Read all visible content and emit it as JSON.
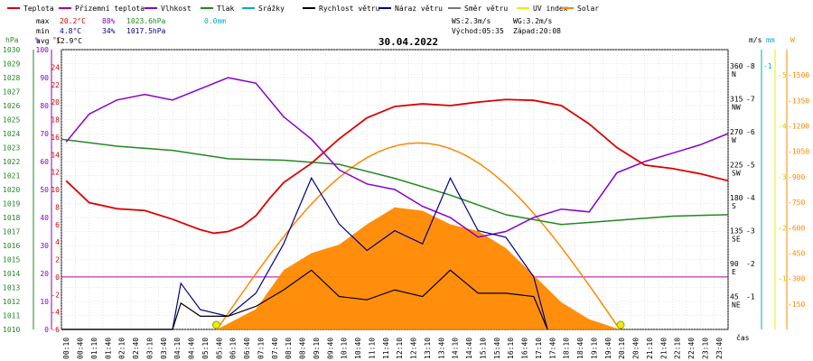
{
  "legend": [
    {
      "label": "Teplota",
      "color": "#dd0000"
    },
    {
      "label": "Přízemní teplota",
      "color": "#aa00aa"
    },
    {
      "label": "Vlhkost",
      "color": "#8800cc"
    },
    {
      "label": "Tlak",
      "color": "#228822"
    },
    {
      "label": "Srážky",
      "color": "#00aacc"
    },
    {
      "label": "Rychlost větru",
      "color": "#000000"
    },
    {
      "label": "Náraz větru",
      "color": "#000088"
    },
    {
      "label": "Směr větru",
      "color": "#777777"
    },
    {
      "label": "UV index",
      "color": "#eeee00"
    },
    {
      "label": "Solar",
      "color": "#ff8800"
    }
  ],
  "stats": {
    "max_label": "max",
    "max_temp": "20.2°C",
    "max_hum": "88%",
    "max_press": "1023.6hPa",
    "rain": "0.0mm",
    "min_label": "min",
    "min_temp": "4.8°C",
    "min_hum": "34%",
    "min_press": "1017.5hPa",
    "avg_label": "avg",
    "avg_temp": "12.9°C"
  },
  "wind_info": {
    "ws": "WS:2.3m/s",
    "wg": "WG:3.2m/s",
    "sunrise": "Východ:05:35",
    "sunset": "Západ:20:08"
  },
  "date": "30.04.2022",
  "axis_units": {
    "hpa": "hPa",
    "pct": "%",
    "degc": "°C",
    "ms": "m/s",
    "mm": "mm",
    "w": "W",
    "cas": "čas"
  },
  "axes": {
    "pressure": [
      "1010",
      "1011",
      "1012",
      "1013",
      "1014",
      "1015",
      "1016",
      "1017",
      "1018",
      "1019",
      "1020",
      "1021",
      "1022",
      "1023",
      "1024",
      "1025",
      "1026",
      "1027",
      "1028",
      "1029",
      "1030"
    ],
    "humidity": [
      "0",
      "10",
      "20",
      "30",
      "40",
      "50",
      "60",
      "70",
      "80",
      "90",
      "100"
    ],
    "temp": [
      "-6",
      "-4",
      "-2",
      "0",
      "2",
      "4",
      "6",
      "8",
      "10",
      "12",
      "14",
      "16",
      "18",
      "20",
      "22",
      "24"
    ],
    "wind_dir": [
      "360 N",
      "315 NW",
      "270 W",
      "225 SW",
      "180 S",
      "135 SE",
      "90 E",
      "45 NE"
    ],
    "wind_speed": [
      "1",
      "2",
      "3",
      "4",
      "5",
      "6",
      "7",
      "8"
    ],
    "rain": [
      "1"
    ],
    "uv": [
      "1",
      "2",
      "3",
      "4",
      "5"
    ],
    "solar": [
      "150",
      "300",
      "450",
      "600",
      "750",
      "900",
      "1050",
      "1200",
      "1350",
      "1500"
    ],
    "time": [
      "00:10",
      "00:40",
      "01:10",
      "01:40",
      "02:10",
      "02:40",
      "03:10",
      "03:40",
      "04:10",
      "04:40",
      "05:10",
      "05:40",
      "06:10",
      "06:40",
      "07:10",
      "07:40",
      "08:10",
      "08:40",
      "09:10",
      "09:40",
      "10:10",
      "10:40",
      "11:10",
      "11:40",
      "12:10",
      "12:40",
      "13:10",
      "13:40",
      "14:10",
      "14:40",
      "15:10",
      "15:40",
      "16:10",
      "16:40",
      "17:10",
      "17:40",
      "18:10",
      "18:40",
      "19:10",
      "19:40",
      "20:10",
      "20:40",
      "21:10",
      "21:40",
      "22:10",
      "22:40",
      "23:10",
      "23:40"
    ]
  },
  "chart_data": {
    "type": "line",
    "title": "30.04.2022",
    "xlabel": "čas",
    "x_range": [
      "00:10",
      "24:00"
    ],
    "series": [
      {
        "name": "Teplota",
        "unit": "°C",
        "color": "#dd0000",
        "x": [
          0.17,
          1,
          2,
          3,
          4,
          5,
          5.5,
          6,
          6.5,
          7,
          7.5,
          8,
          9,
          10,
          11,
          12,
          13,
          14,
          15,
          16,
          17,
          18,
          19,
          20,
          21,
          22,
          23,
          24
        ],
        "y": [
          11,
          8.5,
          7.8,
          7.6,
          6.6,
          5.4,
          5,
          5.2,
          5.8,
          7,
          9,
          10.8,
          13,
          15.8,
          18.2,
          19.5,
          19.8,
          19.6,
          20,
          20.3,
          20.2,
          19.6,
          17.5,
          14.8,
          12.8,
          12.4,
          11.8,
          11
        ]
      },
      {
        "name": "Vlhkost",
        "unit": "%",
        "color": "#8800cc",
        "x": [
          0.17,
          1,
          2,
          3,
          4,
          5,
          6,
          7,
          8,
          9,
          10,
          11,
          12,
          13,
          14,
          15,
          16,
          17,
          18,
          19,
          20,
          21,
          22,
          23,
          24
        ],
        "y": [
          67,
          77,
          82,
          84,
          82,
          86,
          90,
          88,
          76,
          68,
          57,
          52,
          50,
          44,
          40,
          33,
          35,
          40,
          43,
          42,
          56,
          60,
          63,
          66,
          70
        ]
      },
      {
        "name": "Tlak",
        "unit": "hPa",
        "color": "#228822",
        "x": [
          0,
          2,
          4,
          6,
          8,
          10,
          12,
          14,
          16,
          18,
          20,
          22,
          24
        ],
        "y": [
          1023.6,
          1023.1,
          1022.8,
          1022.2,
          1022.1,
          1021.8,
          1020.8,
          1019.6,
          1018.2,
          1017.5,
          1017.8,
          1018.1,
          1018.2
        ]
      },
      {
        "name": "Rychlost větru",
        "unit": "m/s",
        "color": "#000000",
        "x": [
          0,
          4,
          4.3,
          5,
          6,
          7,
          8,
          9,
          10,
          11,
          12,
          13,
          14,
          15,
          16,
          17,
          17.5
        ],
        "y": [
          0,
          0,
          0.8,
          0.4,
          0.4,
          0.7,
          1.2,
          1.8,
          1.0,
          0.9,
          1.2,
          1.0,
          1.8,
          1.1,
          1.1,
          1.0,
          0
        ]
      },
      {
        "name": "Náraz větru",
        "unit": "m/s",
        "color": "#000088",
        "x": [
          0,
          4,
          4.3,
          5,
          6,
          7,
          8,
          9,
          10,
          11,
          12,
          13,
          14,
          15,
          16,
          17,
          17.5
        ],
        "y": [
          0,
          0,
          1.4,
          0.6,
          0.4,
          1.1,
          2.6,
          4.6,
          3.2,
          2.4,
          3.0,
          2.6,
          4.6,
          3.0,
          2.8,
          1.6,
          0
        ]
      },
      {
        "name": "Solar",
        "unit": "W",
        "color": "#ff8800",
        "x": [
          5.6,
          7,
          8,
          9,
          10,
          11,
          12,
          13,
          14,
          15,
          16,
          17,
          18,
          19,
          20.1
        ],
        "y": [
          0,
          120,
          350,
          450,
          500,
          620,
          720,
          700,
          620,
          580,
          480,
          320,
          160,
          60,
          0
        ]
      }
    ],
    "ylim": {
      "temp": [
        -6,
        26
      ],
      "humidity": [
        0,
        100
      ],
      "pressure": [
        1010,
        1030
      ],
      "wind_speed": [
        0,
        8.5
      ],
      "solar": [
        0,
        1650
      ]
    },
    "grid": true,
    "legend_position": "top"
  }
}
